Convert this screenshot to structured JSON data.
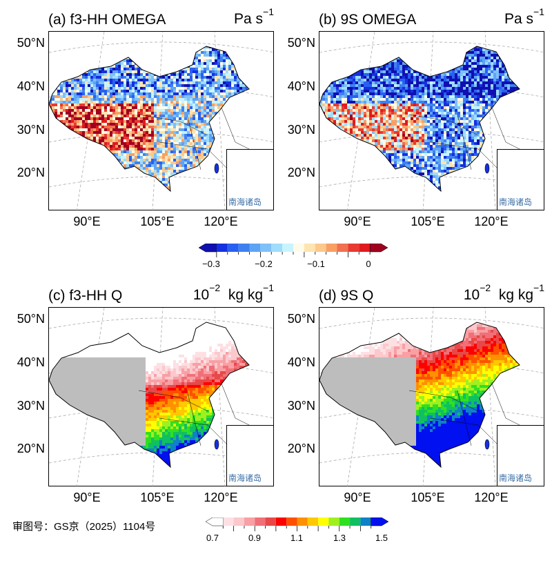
{
  "panels": [
    {
      "id": "a",
      "title": "(a) f3-HH OMEGA",
      "unit": "Pa s",
      "unit_exp": "−1",
      "variable": "omega"
    },
    {
      "id": "b",
      "title": "(b) 9S OMEGA",
      "unit": "Pa s",
      "unit_exp": "−1",
      "variable": "omega"
    },
    {
      "id": "c",
      "title": "(c) f3-HH Q",
      "unit": "kg kg",
      "unit_prefix": "10",
      "unit_prefix_exp": "−2",
      "unit_exp": "−1",
      "variable": "q"
    },
    {
      "id": "d",
      "title": "(d) 9S Q",
      "unit": "kg kg",
      "unit_prefix": "10",
      "unit_prefix_exp": "−2",
      "unit_exp": "−1",
      "variable": "q"
    }
  ],
  "lat_labels": [
    "50°N",
    "40°N",
    "30°N",
    "20°N"
  ],
  "lon_labels": [
    "90°E",
    "105°E",
    "120°E"
  ],
  "inset_label": "南海诸岛",
  "approval": "审图号：GS京（2025）1104号",
  "colorbars": {
    "omega": {
      "ticks": [
        "−0.3",
        "−0.2",
        "−0.1",
        "0"
      ],
      "range": [
        -0.325,
        0.025
      ],
      "colors": [
        "#1010b0",
        "#1530e0",
        "#2a60f0",
        "#3f80f0",
        "#5ea4f5",
        "#7ec0f8",
        "#a0dcfc",
        "#c8f4ff",
        "#fffbe8",
        "#fde4b0",
        "#fbc98c",
        "#f8a064",
        "#f07050",
        "#e83a30",
        "#e01a20",
        "#a00020"
      ]
    },
    "q": {
      "ticks": [
        "0.7",
        "0.9",
        "1.1",
        "1.3",
        "1.5"
      ],
      "range": [
        0.7,
        1.5
      ],
      "colors": [
        "#ffffff",
        "#fde0e4",
        "#fbc8cc",
        "#f8a0a4",
        "#f07078",
        "#e84848",
        "#ff0000",
        "#ff5000",
        "#ff9000",
        "#ffc800",
        "#ffff00",
        "#a0f020",
        "#30e020",
        "#10c060",
        "#1080c8",
        "#0010f0"
      ]
    }
  },
  "colors": {
    "no_data": "#bdbdbd",
    "border": "#000000",
    "grid": "#aaaaaa"
  }
}
